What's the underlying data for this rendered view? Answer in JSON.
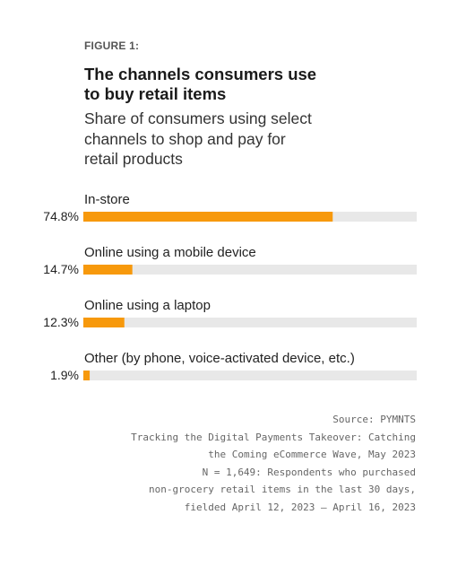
{
  "figure_label": "FIGURE 1:",
  "title_lines": [
    "The channels consumers use",
    "to buy retail items"
  ],
  "subtitle_lines": [
    "Share of consumers using select",
    "channels to shop and pay for",
    "retail products"
  ],
  "colors": {
    "bar": "#F7990C",
    "track": "#E8E8E8",
    "text": "#222222",
    "source_text": "#666666"
  },
  "chart_data": {
    "type": "bar",
    "orientation": "horizontal",
    "categories": [
      "In-store",
      "Online using a mobile device",
      "Online using a laptop",
      "Other (by phone, voice-activated device, etc.)"
    ],
    "values": [
      74.8,
      14.7,
      12.3,
      1.9
    ],
    "value_labels": [
      "74.8%",
      "14.7%",
      "12.3%",
      "1.9%"
    ],
    "xlim": [
      0,
      100
    ],
    "unit": "%",
    "grid": false,
    "legend": "none"
  },
  "source_lines": [
    "Source: PYMNTS",
    "Tracking the Digital Payments Takeover: Catching",
    "the Coming eCommerce Wave, May 2023",
    "N = 1,649: Respondents who purchased",
    "non-grocery retail items in the last 30 days,",
    "fielded April 12, 2023 – April 16, 2023"
  ]
}
